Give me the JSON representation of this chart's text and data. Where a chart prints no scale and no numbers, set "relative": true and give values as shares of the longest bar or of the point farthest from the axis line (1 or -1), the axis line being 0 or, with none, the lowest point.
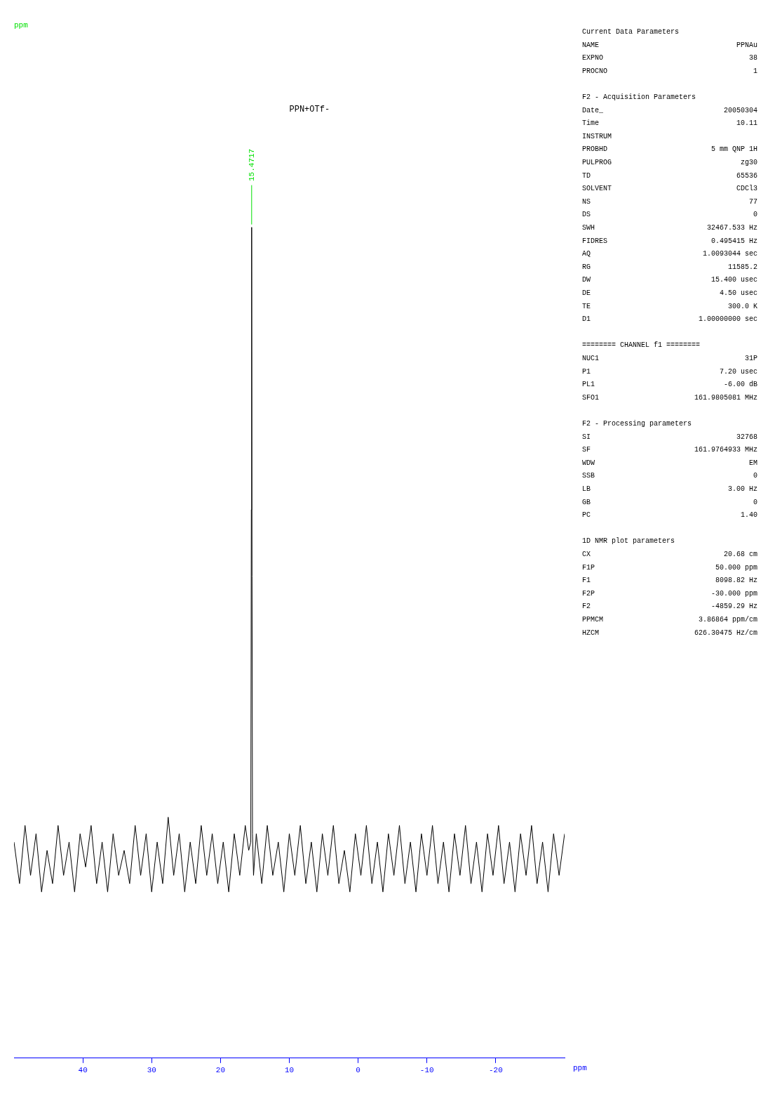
{
  "chart_data": {
    "type": "line",
    "title": "PPN+OTf-",
    "xlabel": "ppm",
    "relative": true,
    "color": "#000000",
    "marker": "none",
    "xlim": [
      50,
      -30
    ],
    "xticks": [
      40,
      30,
      20,
      10,
      0,
      -10,
      -20
    ],
    "x": [
      50,
      49.2,
      48.4,
      47.6,
      46.8,
      46,
      45.2,
      44.4,
      43.6,
      42.8,
      42,
      41.2,
      40.4,
      39.6,
      38.8,
      38,
      37.2,
      36.4,
      35.6,
      34.8,
      34,
      33.2,
      32.4,
      31.6,
      30.8,
      30,
      29.2,
      28.4,
      27.6,
      26.8,
      26,
      25.2,
      24.4,
      23.6,
      22.8,
      22,
      21.2,
      20.4,
      19.6,
      18.8,
      18,
      17.2,
      16.4,
      15.9,
      15.6,
      15.52,
      15.47,
      15.42,
      15.35,
      15.2,
      14.8,
      14,
      13.2,
      12.4,
      11.6,
      10.8,
      10,
      9.2,
      8.4,
      7.6,
      6.8,
      6,
      5.2,
      4.4,
      3.6,
      2.8,
      2,
      1.2,
      0.4,
      -0.4,
      -1.2,
      -2,
      -2.8,
      -3.6,
      -4.4,
      -5.2,
      -6,
      -6.8,
      -7.6,
      -8.4,
      -9.2,
      -10,
      -10.8,
      -11.6,
      -12.4,
      -13.2,
      -14,
      -14.8,
      -15.6,
      -16.4,
      -17.2,
      -18,
      -18.8,
      -19.6,
      -20.4,
      -21.2,
      -22,
      -22.8,
      -23.6,
      -24.4,
      -25.2,
      -26,
      -26.8,
      -27.6,
      -28.4,
      -29.2,
      -30
    ],
    "values": [
      0.26,
      0.21,
      0.28,
      0.22,
      0.27,
      0.2,
      0.25,
      0.21,
      0.28,
      0.22,
      0.26,
      0.2,
      0.27,
      0.23,
      0.28,
      0.21,
      0.26,
      0.2,
      0.27,
      0.22,
      0.25,
      0.21,
      0.28,
      0.22,
      0.27,
      0.2,
      0.26,
      0.21,
      0.29,
      0.22,
      0.27,
      0.2,
      0.26,
      0.21,
      0.28,
      0.22,
      0.27,
      0.21,
      0.26,
      0.2,
      0.27,
      0.22,
      0.28,
      0.25,
      0.26,
      0.66,
      1,
      0.58,
      0.27,
      0.22,
      0.27,
      0.21,
      0.28,
      0.22,
      0.26,
      0.2,
      0.27,
      0.22,
      0.28,
      0.21,
      0.26,
      0.2,
      0.27,
      0.22,
      0.28,
      0.21,
      0.25,
      0.2,
      0.27,
      0.22,
      0.28,
      0.21,
      0.26,
      0.2,
      0.27,
      0.22,
      0.28,
      0.21,
      0.26,
      0.2,
      0.27,
      0.22,
      0.28,
      0.21,
      0.26,
      0.2,
      0.27,
      0.22,
      0.28,
      0.21,
      0.26,
      0.2,
      0.27,
      0.22,
      0.28,
      0.21,
      0.26,
      0.2,
      0.27,
      0.22,
      0.28,
      0.21,
      0.26,
      0.2,
      0.27,
      0.22,
      0.27
    ],
    "annotations": [
      "ppm",
      {
        "text": "15.4717",
        "x": 15.4717,
        "y": 1
      },
      "Current Data Parameters",
      "NAME  PPNAu",
      "EXPNO  38",
      "PROCNO  1",
      "F2 - Acquisition Parameters",
      "Date_  20050304",
      "Time  10.11",
      "INSTRUM",
      "PROBHD  5 mm QNP 1H",
      "PULPROG  zg30",
      "TD  65536",
      "SOLVENT  CDCl3",
      "NS  77",
      "DS  0",
      "SWH  32467.533 Hz",
      "FIDRES  0.495415 Hz",
      "AQ  1.0093044 sec",
      "RG  11585.2",
      "DW  15.400 usec",
      "DE  4.50 usec",
      "TE  300.0 K",
      "D1  1.00000000 sec",
      "======== CHANNEL f1 ========",
      "NUC1  31P",
      "P1  7.20 usec",
      "PL1  -6.00 dB",
      "SFO1  161.9805081 MHz",
      "F2 - Processing parameters",
      "SI  32768",
      "SF  161.9764933 MHz",
      "WDW  EM",
      "SSB  0",
      "LB  3.00 Hz",
      "GB  0",
      "PC  1.40",
      "1D NMR plot parameters",
      "CX  20.68 cm",
      "F1P  50.000 ppm",
      "F1  8098.82 Hz",
      "F2P  -30.000 ppm",
      "F2  -4859.29 Hz",
      "PPMCM  3.86864 ppm/cm",
      "HZCM  626.30475 Hz/cm"
    ]
  }
}
